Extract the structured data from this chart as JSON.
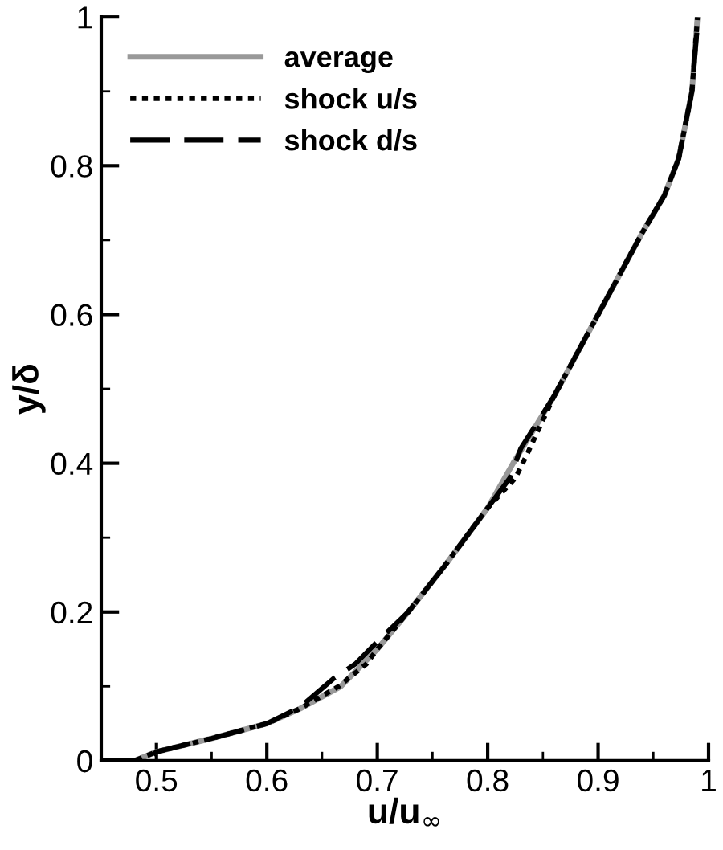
{
  "chart_data": {
    "type": "line",
    "xlabel": "u/u$_{∞}$",
    "ylabel": "y/δ",
    "xlim": [
      0.45,
      1
    ],
    "ylim": [
      0,
      1
    ],
    "xticks": [
      0.5,
      0.6,
      0.7,
      0.8,
      0.9,
      {
        "value": 1,
        "label": "1"
      }
    ],
    "yticks": [
      {
        "value": 0,
        "label": "0"
      },
      0.2,
      0.4,
      0.6,
      0.8,
      {
        "value": 1,
        "label": "1"
      }
    ],
    "grid": false,
    "legend": "top left",
    "series": [
      {
        "name": "average",
        "color": "#999999",
        "line_style": "solid",
        "x": [
          0.45,
          0.48,
          0.5,
          0.55,
          0.6,
          0.63,
          0.667,
          0.7,
          0.728,
          0.76,
          0.8,
          0.823,
          0.86,
          0.9,
          0.94,
          0.96,
          0.973,
          0.985,
          0.99
        ],
        "values": [
          0,
          0,
          0.012,
          0.03,
          0.05,
          0.07,
          0.1,
          0.15,
          0.2,
          0.26,
          0.34,
          0.4,
          0.49,
          0.6,
          0.71,
          0.76,
          0.81,
          0.9,
          1
        ]
      },
      {
        "name": "shock u/s",
        "color": "#000000",
        "line_style": "dotted",
        "x": [
          0.45,
          0.48,
          0.5,
          0.55,
          0.6,
          0.63,
          0.665,
          0.69,
          0.7,
          0.728,
          0.76,
          0.8,
          0.825,
          0.835,
          0.86,
          0.9,
          0.94,
          0.96,
          0.973,
          0.985,
          0.99
        ],
        "values": [
          0,
          0,
          0.012,
          0.03,
          0.05,
          0.07,
          0.1,
          0.13,
          0.15,
          0.2,
          0.26,
          0.34,
          0.38,
          0.41,
          0.49,
          0.6,
          0.71,
          0.76,
          0.81,
          0.9,
          1
        ]
      },
      {
        "name": "shock d/s",
        "color": "#000000",
        "line_style": "dashed",
        "x": [
          0.45,
          0.49,
          0.5,
          0.55,
          0.6,
          0.63,
          0.66,
          0.68,
          0.7,
          0.728,
          0.76,
          0.8,
          0.82,
          0.83,
          0.86,
          0.9,
          0.94,
          0.96,
          0.973,
          0.985,
          0.99
        ],
        "values": [
          0,
          0,
          0.012,
          0.03,
          0.05,
          0.072,
          0.11,
          0.13,
          0.16,
          0.2,
          0.26,
          0.34,
          0.38,
          0.42,
          0.49,
          0.6,
          0.71,
          0.76,
          0.81,
          0.9,
          0.99
        ]
      }
    ]
  }
}
